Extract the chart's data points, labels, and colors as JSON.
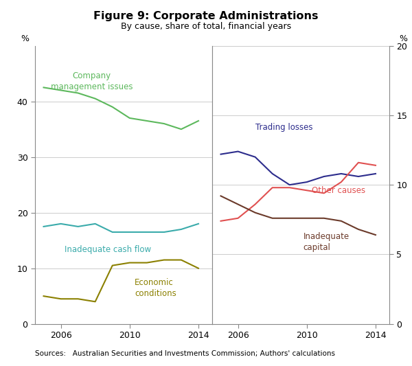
{
  "title": "Figure 9: Corporate Administrations",
  "subtitle": "By cause, share of total, financial years",
  "source_text": "Sources:   Australian Securities and Investments Commission; Authors' calculations",
  "left_panel": {
    "years": [
      2005,
      2006,
      2007,
      2008,
      2009,
      2010,
      2011,
      2012,
      2013,
      2014
    ],
    "company_mgmt": [
      42.5,
      42.0,
      41.5,
      40.5,
      39.0,
      37.0,
      36.5,
      36.0,
      35.0,
      36.5
    ],
    "inadequate_cashflow": [
      17.5,
      18.0,
      17.5,
      18.0,
      16.5,
      16.5,
      16.5,
      16.5,
      17.0,
      18.0
    ],
    "economic_conditions": [
      5.0,
      4.5,
      4.5,
      4.0,
      10.5,
      11.0,
      11.0,
      11.5,
      11.5,
      10.0
    ],
    "ylim": [
      0,
      50
    ],
    "yticks": [
      0,
      10,
      20,
      30,
      40
    ],
    "xlim": [
      2004.5,
      2014.8
    ],
    "xticks": [
      2006,
      2010,
      2014
    ],
    "colors": {
      "company_mgmt": "#5cb85c",
      "inadequate_cashflow": "#3aabab",
      "economic_conditions": "#8b8000"
    },
    "labels": {
      "company_mgmt": "Company\nmanagement issues",
      "inadequate_cashflow": "Inadequate cash flow",
      "economic_conditions": "Economic\nconditions"
    }
  },
  "right_panel": {
    "years": [
      2005,
      2006,
      2007,
      2008,
      2009,
      2010,
      2011,
      2012,
      2013,
      2014
    ],
    "trading_losses": [
      30.5,
      31.0,
      30.0,
      27.0,
      25.0,
      25.5,
      26.5,
      27.0,
      26.5,
      27.0
    ],
    "other_causes": [
      18.5,
      19.0,
      21.5,
      24.5,
      24.5,
      24.0,
      23.5,
      25.5,
      29.0,
      28.5
    ],
    "inadequate_capital": [
      23.0,
      21.5,
      20.0,
      19.0,
      19.0,
      19.0,
      19.0,
      18.5,
      17.0,
      16.0
    ],
    "ylim": [
      0,
      50
    ],
    "yticks_right": [
      0,
      5,
      10,
      15,
      20
    ],
    "scale_factor": 2.5,
    "xlim": [
      2004.5,
      2014.8
    ],
    "xticks": [
      2006,
      2010,
      2014
    ],
    "colors": {
      "trading_losses": "#2c2c8c",
      "other_causes": "#e05050",
      "inadequate_capital": "#6b3a2a"
    },
    "labels": {
      "trading_losses": "Trading losses",
      "other_causes": "Other causes",
      "inadequate_capital": "Inadequate\ncapital"
    }
  }
}
